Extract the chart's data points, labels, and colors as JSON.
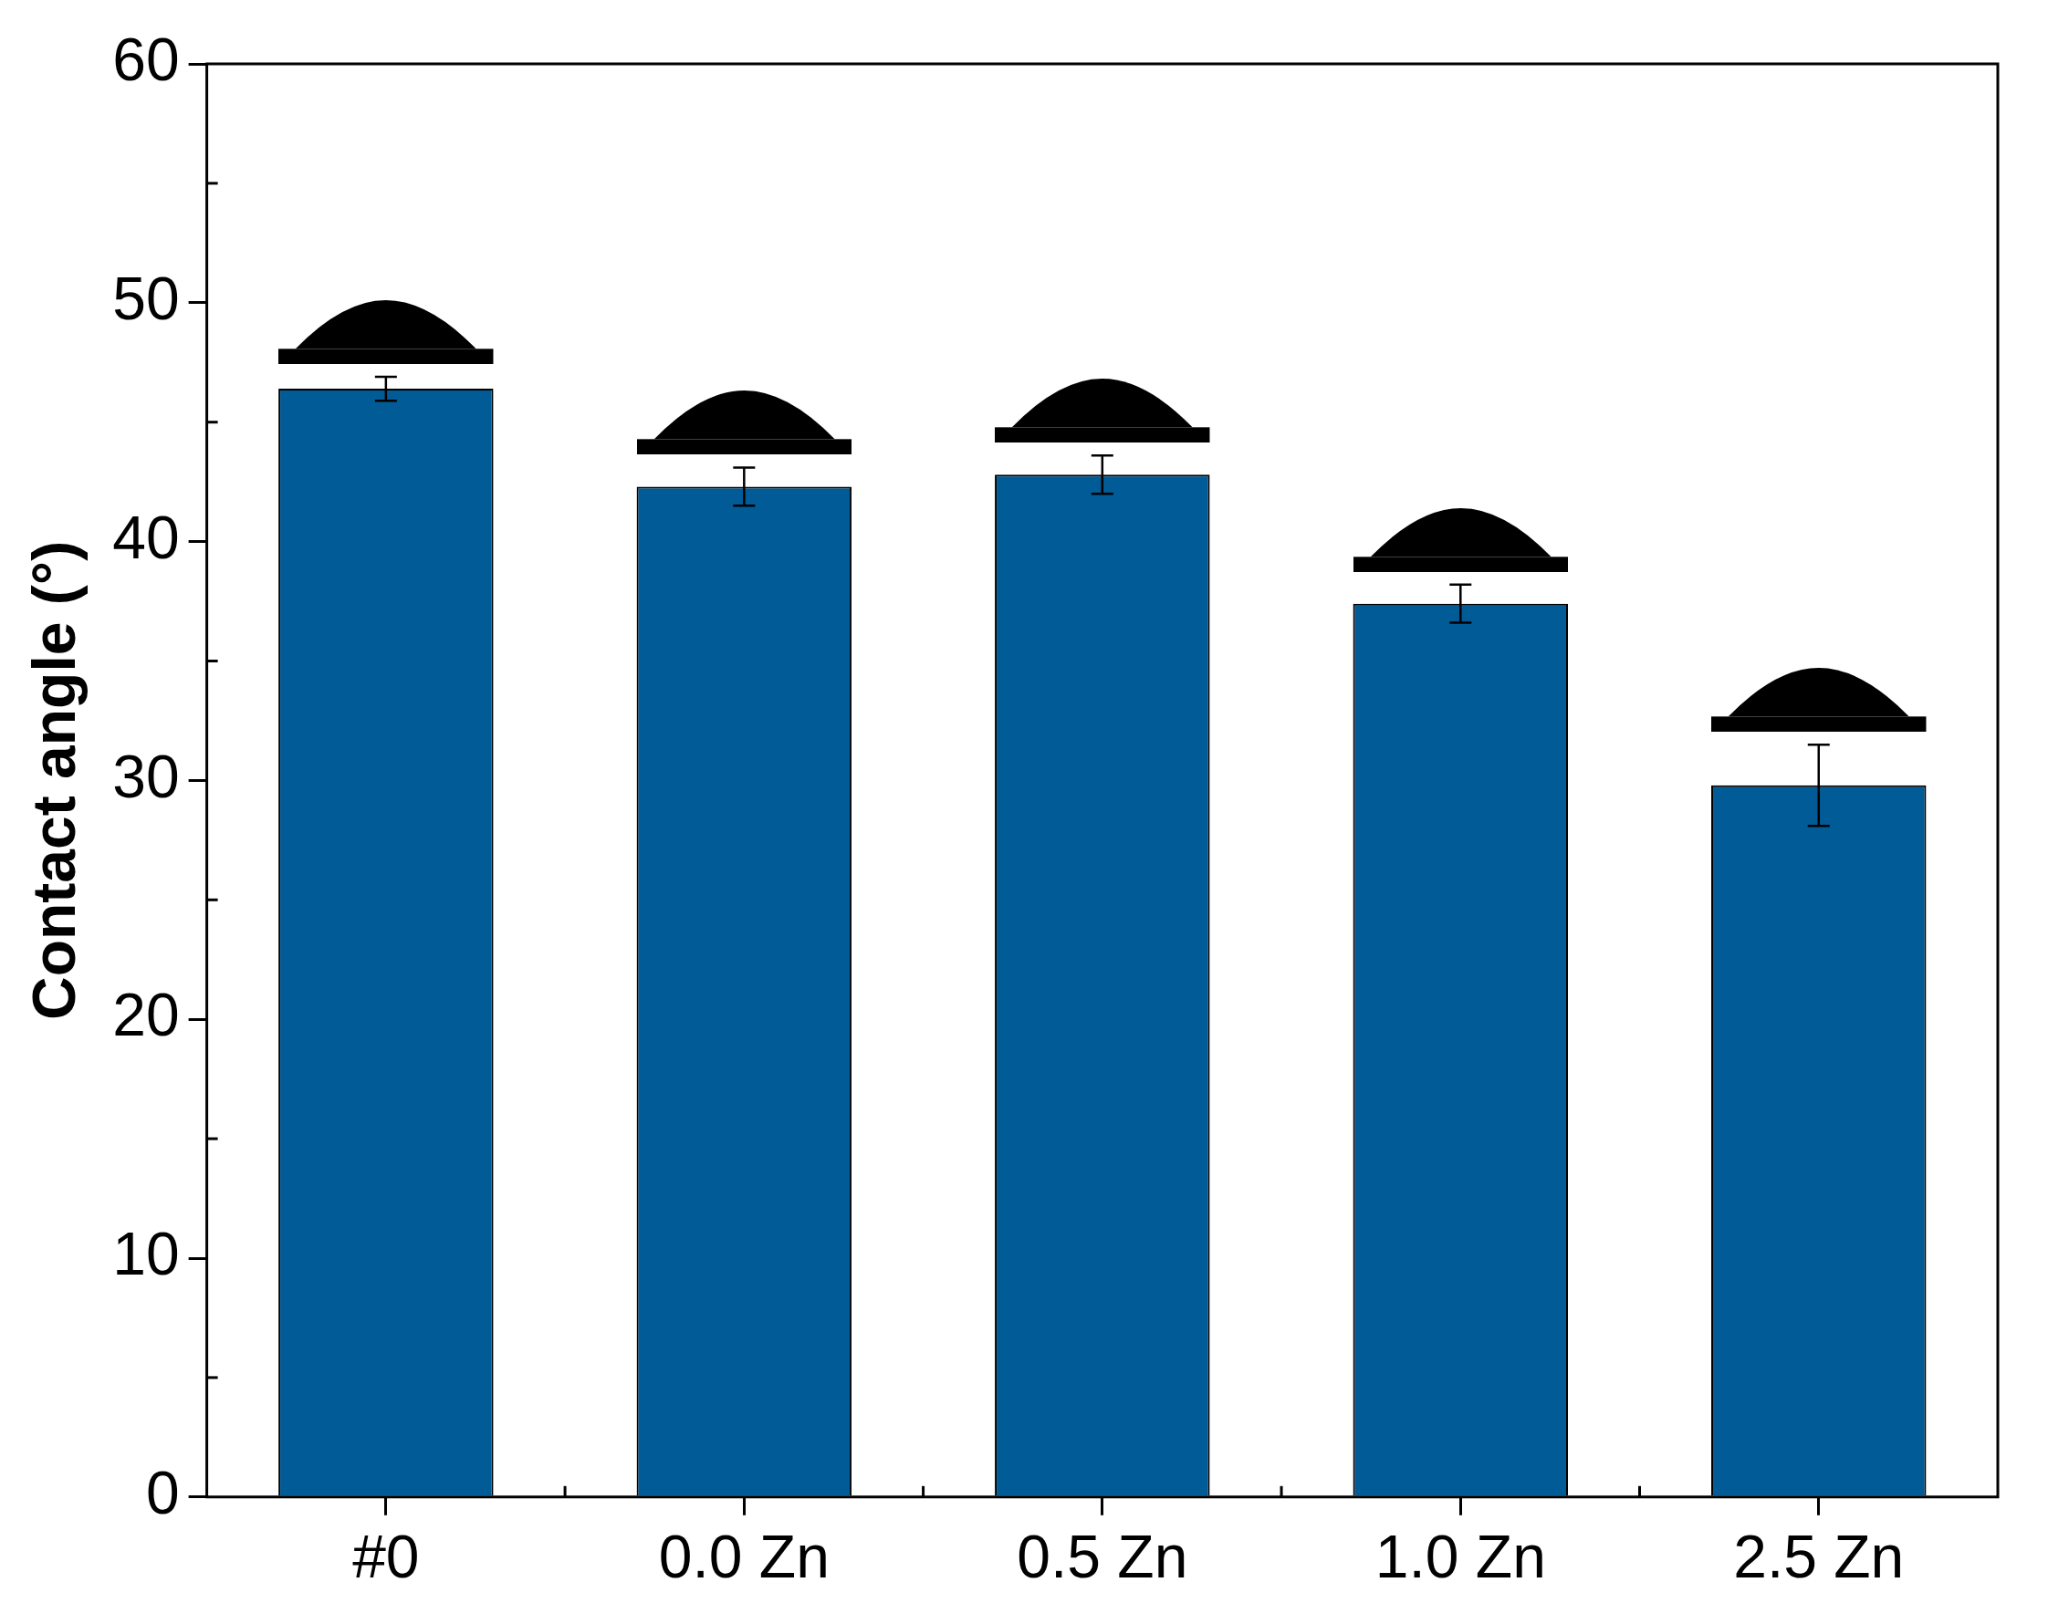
{
  "chart_data": {
    "type": "bar",
    "ylabel": "Contact angle (°)",
    "categories": [
      "#0",
      "0.0 Zn",
      "0.5 Zn",
      "1.0 Zn",
      "2.5 Zn"
    ],
    "values": [
      46.4,
      42.3,
      42.8,
      37.4,
      29.8
    ],
    "errors": [
      0.5,
      0.8,
      0.8,
      0.8,
      1.7
    ],
    "color": "#005b96",
    "ylim": [
      0,
      60
    ],
    "yticks": [
      0,
      10,
      20,
      30,
      40,
      50,
      60
    ],
    "grid": false,
    "legend": false
  }
}
